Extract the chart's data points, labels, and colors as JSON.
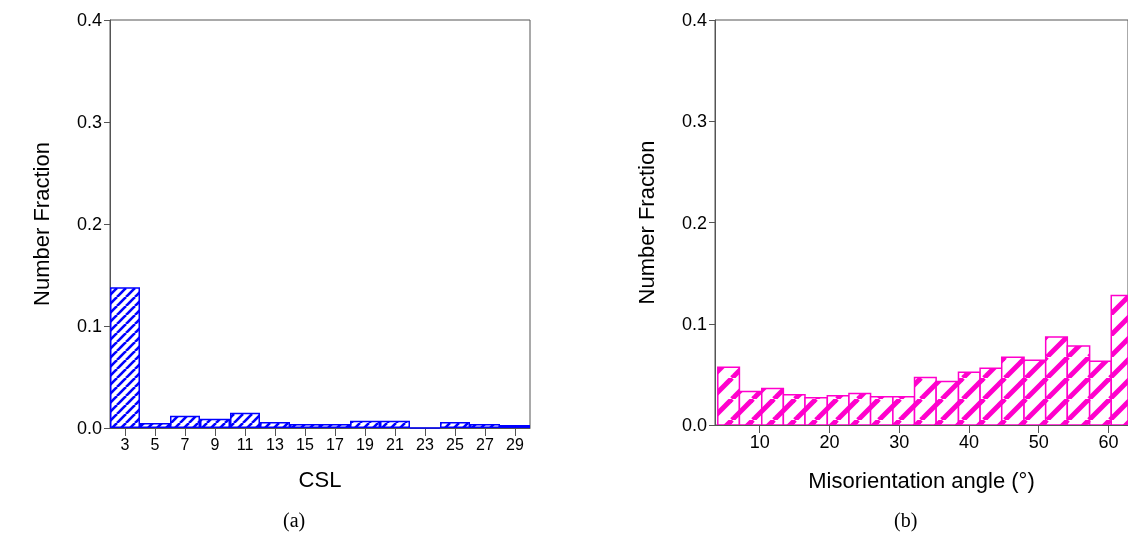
{
  "chart_data": [
    {
      "type": "bar",
      "xlabel": "CSL",
      "ylabel": "Number Fraction",
      "annotations": [
        "(a)"
      ],
      "categories": [
        "3",
        "5",
        "7",
        "9",
        "11",
        "13",
        "15",
        "17",
        "19",
        "21",
        "23",
        "25",
        "27",
        "29"
      ],
      "values": [
        0.138,
        0.005,
        0.012,
        0.009,
        0.015,
        0.006,
        0.004,
        0.004,
        0.007,
        0.007,
        0,
        0.006,
        0.004,
        0.003
      ],
      "color": "#0000ff",
      "ylim": [
        0,
        0.4
      ],
      "yticks": [
        {
          "value": 0,
          "label": "0.0"
        },
        0.1,
        0.2,
        0.3,
        0.4
      ],
      "grid": false
    },
    {
      "type": "histogram",
      "xlabel": "Misorientation angle (°)",
      "ylabel": "Number Fraction",
      "annotations": [
        "(b)"
      ],
      "bins": [
        4.0,
        7.1,
        10.3,
        13.4,
        16.5,
        19.7,
        22.8,
        25.9,
        29.1,
        32.2,
        35.3,
        38.5,
        41.6,
        44.7,
        47.9,
        51.0,
        54.1,
        57.3,
        60.4,
        62.8
      ],
      "values": [
        0.057,
        0.033,
        0.036,
        0.03,
        0.027,
        0.029,
        0.031,
        0.028,
        0.028,
        0.047,
        0.043,
        0.052,
        0.056,
        0.067,
        0.064,
        0.087,
        0.078,
        0.063,
        0.128
      ],
      "color": "#ff00cc",
      "xlim": [
        3.6,
        62.8
      ],
      "xticks": [
        10,
        20,
        30,
        40,
        50,
        60
      ],
      "ylim": [
        0,
        0.4
      ],
      "yticks": [
        {
          "value": 0,
          "label": "0.0"
        },
        0.1,
        0.2,
        0.3,
        0.4
      ],
      "grid": false
    }
  ]
}
